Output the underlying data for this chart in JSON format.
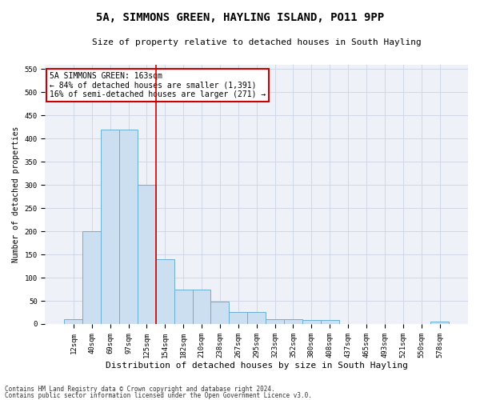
{
  "title1": "5A, SIMMONS GREEN, HAYLING ISLAND, PO11 9PP",
  "title2": "Size of property relative to detached houses in South Hayling",
  "xlabel": "Distribution of detached houses by size in South Hayling",
  "ylabel": "Number of detached properties",
  "bar_labels": [
    "12sqm",
    "40sqm",
    "69sqm",
    "97sqm",
    "125sqm",
    "154sqm",
    "182sqm",
    "210sqm",
    "238sqm",
    "267sqm",
    "295sqm",
    "323sqm",
    "352sqm",
    "380sqm",
    "408sqm",
    "437sqm",
    "465sqm",
    "493sqm",
    "521sqm",
    "550sqm",
    "578sqm"
  ],
  "bar_values": [
    10,
    200,
    420,
    420,
    300,
    140,
    75,
    75,
    48,
    25,
    25,
    10,
    10,
    8,
    8,
    0,
    0,
    0,
    0,
    0,
    5
  ],
  "bar_color": "#ccdff0",
  "bar_edge_color": "#6baed6",
  "grid_color": "#d0d8e8",
  "bg_color": "#eef2f8",
  "vline_x_index": 5,
  "vline_color": "#cc0000",
  "annotation_text": "5A SIMMONS GREEN: 163sqm\n← 84% of detached houses are smaller (1,391)\n16% of semi-detached houses are larger (271) →",
  "annotation_box_color": "#ffffff",
  "annotation_box_edge": "#cc0000",
  "footer1": "Contains HM Land Registry data © Crown copyright and database right 2024.",
  "footer2": "Contains public sector information licensed under the Open Government Licence v3.0.",
  "ylim": [
    0,
    560
  ],
  "yticks": [
    0,
    50,
    100,
    150,
    200,
    250,
    300,
    350,
    400,
    450,
    500,
    550
  ],
  "title1_fontsize": 10,
  "title2_fontsize": 8,
  "xlabel_fontsize": 8,
  "ylabel_fontsize": 7,
  "tick_fontsize": 6.5,
  "annot_fontsize": 7
}
